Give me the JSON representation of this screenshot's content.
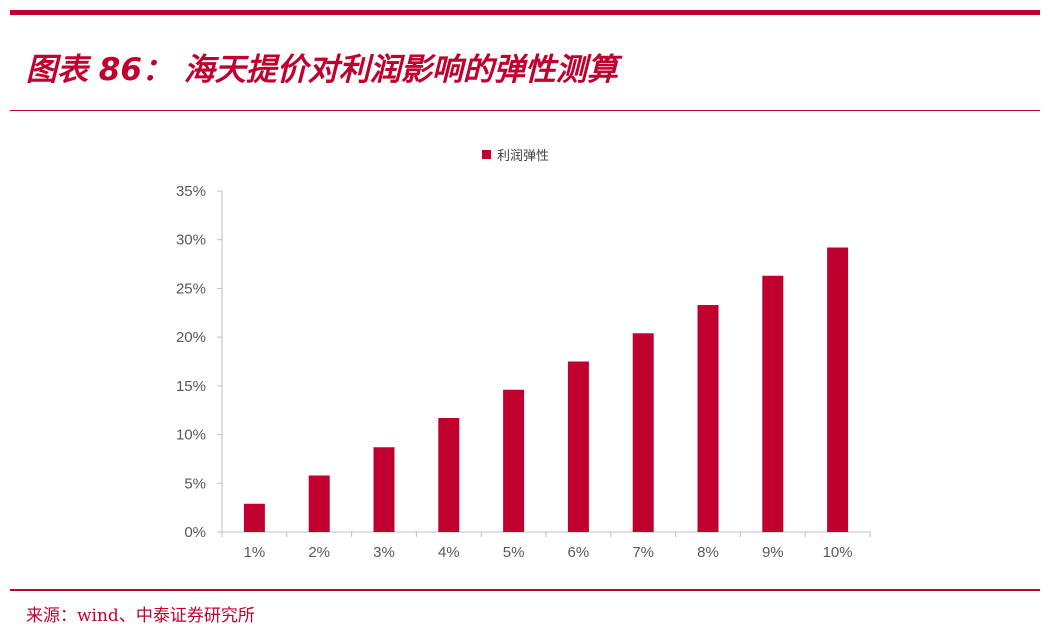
{
  "title": "图表 86： 海天提价对利润影响的弹性测算",
  "source": "来源：wind、中泰证券研究所",
  "colors": {
    "accent": "#c0012f",
    "axis": "#bfbfbf",
    "tick_text": "#595959"
  },
  "chart_data": {
    "type": "bar",
    "categories": [
      "1%",
      "2%",
      "3%",
      "4%",
      "5%",
      "6%",
      "7%",
      "8%",
      "9%",
      "10%"
    ],
    "series": [
      {
        "name": "利润弹性",
        "values": [
          2.9,
          5.8,
          8.7,
          11.7,
          14.6,
          17.5,
          20.4,
          23.3,
          26.3,
          29.2
        ]
      }
    ],
    "yticks": [
      "0%",
      "5%",
      "10%",
      "15%",
      "20%",
      "25%",
      "30%",
      "35%"
    ],
    "ylim": [
      0,
      35
    ],
    "legend_position": "top-center",
    "grid": false
  }
}
